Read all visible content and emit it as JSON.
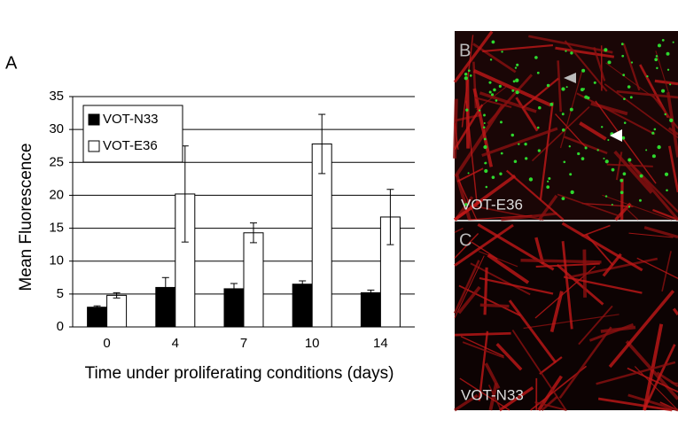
{
  "chart_data": {
    "type": "bar",
    "x_label": "Time under proliferating conditions (days)",
    "y_label": "Mean Fluorescence",
    "categories": [
      "0",
      "4",
      "7",
      "10",
      "14"
    ],
    "series": [
      {
        "name": "VOT-N33",
        "color": "#000000",
        "values": [
          3.0,
          6.0,
          5.8,
          6.5,
          5.2
        ],
        "errors": [
          0.2,
          1.5,
          0.8,
          0.5,
          0.4
        ]
      },
      {
        "name": "VOT-E36",
        "color": "#ffffff",
        "values": [
          4.8,
          20.2,
          14.3,
          27.8,
          16.7
        ],
        "errors": [
          0.4,
          7.3,
          1.5,
          4.5,
          4.2
        ]
      }
    ],
    "ylim": [
      0,
      35
    ],
    "yticks": [
      0,
      5,
      10,
      15,
      20,
      25,
      30,
      35
    ],
    "grid": true,
    "legend": "upper left"
  },
  "panel_labels": [
    "A",
    "B",
    "C"
  ],
  "images": [
    {
      "label": "VOT-E36"
    },
    {
      "label": "VOT-N33"
    }
  ]
}
